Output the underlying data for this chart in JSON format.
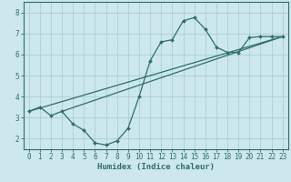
{
  "background_color": "#cce8ec",
  "grid_color": "#aacdd4",
  "line_color": "#2d6e6a",
  "x_label": "Humidex (Indice chaleur)",
  "ylim": [
    1.5,
    8.5
  ],
  "xlim": [
    -0.5,
    23.5
  ],
  "yticks": [
    2,
    3,
    4,
    5,
    6,
    7,
    8
  ],
  "xticks": [
    0,
    1,
    2,
    3,
    4,
    5,
    6,
    7,
    8,
    9,
    10,
    11,
    12,
    13,
    14,
    15,
    16,
    17,
    18,
    19,
    20,
    21,
    22,
    23
  ],
  "curve1_x": [
    0,
    1,
    2,
    3,
    4,
    5,
    6,
    7,
    8,
    9,
    10,
    11,
    12,
    13,
    14,
    15,
    16,
    17,
    18,
    19,
    20,
    21,
    22,
    23
  ],
  "curve1_y": [
    3.3,
    3.5,
    3.1,
    3.3,
    2.7,
    2.4,
    1.8,
    1.7,
    1.9,
    2.5,
    4.0,
    5.7,
    6.6,
    6.7,
    7.6,
    7.75,
    7.2,
    6.35,
    6.1,
    6.1,
    6.8,
    6.85,
    6.85,
    6.85
  ],
  "line1_x": [
    0,
    23
  ],
  "line1_y": [
    3.3,
    6.85
  ],
  "line2_x": [
    3,
    23
  ],
  "line2_y": [
    3.3,
    6.85
  ],
  "tick_fontsize": 5.5,
  "label_fontsize": 6.5
}
